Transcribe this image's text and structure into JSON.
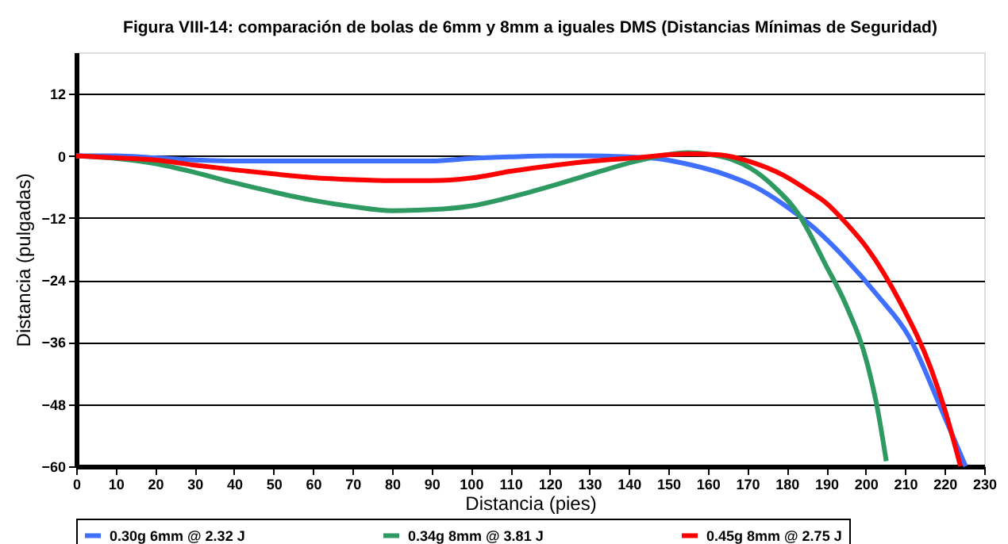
{
  "chart_data": {
    "type": "line",
    "title": "Figura VIII-14: comparación de bolas de 6mm y 8mm a iguales DMS (Distancias Mínimas de Seguridad)",
    "xlabel": "Distancia (pies)",
    "ylabel": "Distancia (pulgadas)",
    "xlim": [
      0,
      230
    ],
    "xticks": [
      0,
      10,
      20,
      30,
      40,
      50,
      60,
      70,
      80,
      90,
      100,
      110,
      120,
      130,
      140,
      150,
      160,
      170,
      180,
      190,
      200,
      210,
      220,
      230
    ],
    "ylim": [
      -60,
      20
    ],
    "yticks": [
      -60,
      -48,
      -36,
      -24,
      -12,
      0,
      12
    ],
    "grid": "y",
    "legend": "bottom",
    "marker": "none",
    "line_style": "solid",
    "series": [
      {
        "name": "0.30g 6mm @ 2.32 J",
        "color": "#3f6fff",
        "x": [
          0,
          10,
          20,
          30,
          40,
          50,
          60,
          70,
          80,
          90,
          100,
          110,
          120,
          130,
          140,
          148,
          156,
          164,
          172,
          179,
          187,
          195,
          203,
          211,
          219,
          225.3
        ],
        "values": [
          0,
          0,
          -0.4,
          -0.8,
          -1,
          -1,
          -1,
          -1,
          -1,
          -1,
          -0.5,
          -0.2,
          0,
          0,
          -0.2,
          -0.6,
          -1.8,
          -3.5,
          -6,
          -9.3,
          -14,
          -20,
          -27,
          -35,
          -48.7,
          -60
        ]
      },
      {
        "name": "0.34g 8mm @ 3.81 J",
        "color": "#2e9a62",
        "x": [
          0,
          10,
          20,
          30,
          40,
          50,
          60,
          70,
          80,
          90,
          100,
          110,
          121,
          131,
          141.5,
          148,
          155,
          160,
          165.7,
          171,
          176.4,
          183,
          189.8,
          195.1,
          200.5,
          203,
          205.2
        ],
        "values": [
          0,
          -0.5,
          -1.5,
          -3.2,
          -5.2,
          -7,
          -8.6,
          -9.8,
          -10.6,
          -10.4,
          -9.7,
          -8,
          -5.7,
          -3.4,
          -1.1,
          0,
          0.6,
          0.3,
          -0.6,
          -2.5,
          -5.7,
          -11.3,
          -21,
          -29,
          -40.5,
          -49,
          -59
        ]
      },
      {
        "name": "0.45g 8mm @ 2.75 J",
        "color": "#ff0000",
        "x": [
          0,
          10,
          20,
          30,
          40,
          50,
          60,
          70,
          80,
          90,
          100,
          110,
          121.4,
          131,
          141.5,
          150,
          155,
          163,
          171,
          179,
          185,
          189.8,
          195,
          200.5,
          208.5,
          216.6,
          220,
          224
        ],
        "values": [
          0,
          -0.4,
          -0.8,
          -1.8,
          -2.7,
          -3.5,
          -4.2,
          -4.6,
          -4.8,
          -4.8,
          -4.3,
          -3,
          -1.8,
          -1,
          -0.4,
          0.2,
          0.4,
          0.2,
          -1.2,
          -3.7,
          -6.5,
          -9,
          -13,
          -18,
          -28,
          -41.3,
          -49,
          -60
        ]
      }
    ]
  }
}
